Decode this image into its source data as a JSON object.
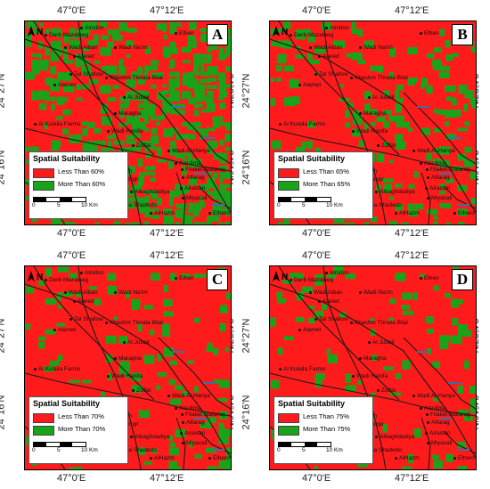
{
  "axes": {
    "top_ticks": [
      "47°0'E",
      "47°12'E"
    ],
    "bottom_ticks": [
      "47°0'E",
      "47°12'E"
    ],
    "left_ticks": [
      "24°27'N",
      "24°16'N"
    ],
    "right_ticks": [
      "24°27'N",
      "24°16'N"
    ]
  },
  "colors": {
    "unsuitable": "#ff1b1b",
    "suitable": "#19a319",
    "roads": "#1a1a1a",
    "water": "#3a6ea5"
  },
  "north_arrow": {
    "label": "N",
    "icon": "north-arrow-icon"
  },
  "legend_title": "Spatial Suitability",
  "scale": {
    "labels": [
      "0",
      "5",
      "10 Km"
    ]
  },
  "places": [
    "Alnidon",
    "Derb Mazaleeg",
    "Elhen",
    "Wadi Alban",
    "Wadi Na'im",
    "Alared",
    "Tal Shallow",
    "Khashm Thnata Bilal",
    "Alamet",
    "Al Jubail",
    "Maragha",
    "Al Kulaila Farms",
    "Wadi Hanifa",
    "Zolfat",
    "Wadi Al-Hanya",
    "Wadi Nesah",
    "Qleed Nuqir",
    "Alsulima",
    "Filaket Alafarag",
    "Alfarag",
    "Alraisan",
    "Miyacali",
    "Albaghdadiya",
    "Aqba Shadedo",
    "Baljan",
    "AlHazm",
    "Elhero"
  ],
  "panels": [
    {
      "letter": "A",
      "legend": [
        "Less Than 60%",
        "More Than 60%"
      ],
      "suitable_fraction": 0.55
    },
    {
      "letter": "B",
      "legend": [
        "Less Than 65%",
        "More Than 65%"
      ],
      "suitable_fraction": 0.28
    },
    {
      "letter": "C",
      "legend": [
        "Less Than 70%",
        "More Than 70%"
      ],
      "suitable_fraction": 0.16
    },
    {
      "letter": "D",
      "legend": [
        "Less Than 75%",
        "More Than 75%"
      ],
      "suitable_fraction": 0.12
    }
  ]
}
